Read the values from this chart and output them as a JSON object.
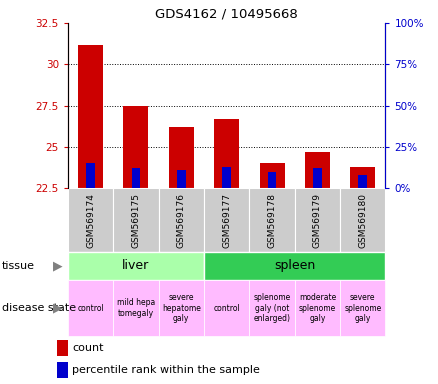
{
  "title": "GDS4162 / 10495668",
  "samples": [
    "GSM569174",
    "GSM569175",
    "GSM569176",
    "GSM569177",
    "GSM569178",
    "GSM569179",
    "GSM569180"
  ],
  "count_values": [
    31.2,
    27.5,
    26.2,
    26.7,
    24.0,
    24.7,
    23.8
  ],
  "percentile_values": [
    15,
    12,
    11,
    13,
    10,
    12,
    8
  ],
  "ymin": 22.5,
  "ymax": 32.5,
  "yticks": [
    22.5,
    25,
    27.5,
    30,
    32.5
  ],
  "ytick_labels": [
    "22.5",
    "25",
    "27.5",
    "30",
    "32.5"
  ],
  "y2ticks": [
    0,
    25,
    50,
    75,
    100
  ],
  "y2tick_labels": [
    "0%",
    "25%",
    "50%",
    "75%",
    "100%"
  ],
  "bar_color": "#cc0000",
  "percentile_color": "#0000cc",
  "bar_bottom": 22.5,
  "tissue_groups": [
    {
      "label": "liver",
      "cols": [
        0,
        1,
        2
      ],
      "color": "#aaffaa"
    },
    {
      "label": "spleen",
      "cols": [
        3,
        4,
        5,
        6
      ],
      "color": "#33cc55"
    }
  ],
  "disease_states": [
    {
      "label": "control",
      "col": 0,
      "color": "#ffbbff"
    },
    {
      "label": "mild hepa\ntomegaly",
      "col": 1,
      "color": "#ffbbff"
    },
    {
      "label": "severe\nhepatome\ngaly",
      "col": 2,
      "color": "#ffbbff"
    },
    {
      "label": "control",
      "col": 3,
      "color": "#ffbbff"
    },
    {
      "label": "splenome\ngaly (not\nenlarged)",
      "col": 4,
      "color": "#ffbbff"
    },
    {
      "label": "moderate\nsplenome\ngaly",
      "col": 5,
      "color": "#ffbbff"
    },
    {
      "label": "severe\nsplenome\ngaly",
      "col": 6,
      "color": "#ffbbff"
    }
  ],
  "tick_color_left": "#cc0000",
  "tick_color_right": "#0000cc",
  "sample_bg_color": "#cccccc",
  "left_label_color": "#555555"
}
